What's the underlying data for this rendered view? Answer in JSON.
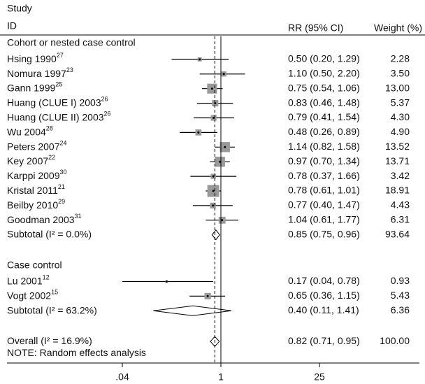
{
  "chart_data": {
    "type": "forest",
    "headers": {
      "study": "Study",
      "id": "ID",
      "rr": "RR (95% CI)",
      "weight": "Weight (%)"
    },
    "groups": [
      {
        "name": "Cohort or nested case control",
        "studies": [
          {
            "study": "Hsing 1990",
            "ref": "27",
            "rr": 0.5,
            "lo": 0.2,
            "hi": 1.29,
            "rr_label": "0.50 (0.20, 1.29)",
            "weight": 2.28,
            "weight_label": "2.28"
          },
          {
            "study": "Nomura 1997",
            "ref": "23",
            "rr": 1.1,
            "lo": 0.5,
            "hi": 2.2,
            "rr_label": "1.10 (0.50, 2.20)",
            "weight": 3.5,
            "weight_label": "3.50"
          },
          {
            "study": "Gann 1999",
            "ref": "25",
            "rr": 0.75,
            "lo": 0.54,
            "hi": 1.06,
            "rr_label": "0.75 (0.54, 1.06)",
            "weight": 13.0,
            "weight_label": "13.00"
          },
          {
            "study": "Huang (CLUE I) 2003",
            "ref": "26",
            "rr": 0.83,
            "lo": 0.46,
            "hi": 1.48,
            "rr_label": "0.83 (0.46, 1.48)",
            "weight": 5.37,
            "weight_label": "5.37"
          },
          {
            "study": "Huang (CLUE II) 2003",
            "ref": "26",
            "rr": 0.79,
            "lo": 0.41,
            "hi": 1.54,
            "rr_label": "0.79 (0.41, 1.54)",
            "weight": 4.3,
            "weight_label": "4.30"
          },
          {
            "study": "Wu 2004",
            "ref": "28",
            "rr": 0.48,
            "lo": 0.26,
            "hi": 0.89,
            "rr_label": "0.48 (0.26, 0.89)",
            "weight": 4.9,
            "weight_label": "4.90"
          },
          {
            "study": "Peters 2007",
            "ref": "24",
            "rr": 1.14,
            "lo": 0.82,
            "hi": 1.58,
            "rr_label": "1.14 (0.82, 1.58)",
            "weight": 13.52,
            "weight_label": "13.52"
          },
          {
            "study": "Key 2007",
            "ref": "22",
            "rr": 0.97,
            "lo": 0.7,
            "hi": 1.34,
            "rr_label": "0.97 (0.70, 1.34)",
            "weight": 13.71,
            "weight_label": "13.71"
          },
          {
            "study": "Karppi 2009",
            "ref": "30",
            "rr": 0.78,
            "lo": 0.37,
            "hi": 1.66,
            "rr_label": "0.78 (0.37, 1.66)",
            "weight": 3.42,
            "weight_label": "3.42"
          },
          {
            "study": "Kristal 2011",
            "ref": "21",
            "rr": 0.78,
            "lo": 0.61,
            "hi": 1.01,
            "rr_label": "0.78 (0.61, 1.01)",
            "weight": 18.91,
            "weight_label": "18.91"
          },
          {
            "study": "Beilby 2010",
            "ref": "29",
            "rr": 0.77,
            "lo": 0.4,
            "hi": 1.47,
            "rr_label": "0.77 (0.40, 1.47)",
            "weight": 4.43,
            "weight_label": "4.43"
          },
          {
            "study": "Goodman 2003",
            "ref": "31",
            "rr": 1.04,
            "lo": 0.61,
            "hi": 1.77,
            "rr_label": "1.04 (0.61, 1.77)",
            "weight": 6.31,
            "weight_label": "6.31"
          }
        ],
        "subtotal": {
          "study": "Subtotal (I² = 0.0%)",
          "rr": 0.85,
          "lo": 0.75,
          "hi": 0.96,
          "rr_label": "0.85 (0.75, 0.96)",
          "weight": 93.64,
          "weight_label": "93.64"
        }
      },
      {
        "name": "Case control",
        "studies": [
          {
            "study": "Lu 2001",
            "ref": "12",
            "rr": 0.17,
            "lo": 0.04,
            "hi": 0.78,
            "rr_label": "0.17 (0.04, 0.78)",
            "weight": 0.93,
            "weight_label": "0.93"
          },
          {
            "study": "Vogt 2002",
            "ref": "15",
            "rr": 0.65,
            "lo": 0.36,
            "hi": 1.15,
            "rr_label": "0.65 (0.36, 1.15)",
            "weight": 5.43,
            "weight_label": "5.43"
          }
        ],
        "subtotal": {
          "study": "Subtotal (I² = 63.2%)",
          "rr": 0.4,
          "lo": 0.11,
          "hi": 1.41,
          "rr_label": "0.40 (0.11, 1.41)",
          "weight": 6.36,
          "weight_label": "6.36"
        }
      }
    ],
    "overall": {
      "study": "Overall (I² = 16.9%)",
      "rr": 0.82,
      "lo": 0.71,
      "hi": 0.95,
      "rr_label": "0.82 (0.71, 0.95)",
      "weight": 100.0,
      "weight_label": "100.00"
    },
    "note": "NOTE: Random effects analysis",
    "log_scale": true,
    "xlim": [
      0.04,
      25
    ],
    "xticks": [
      {
        "value": 0.04,
        "label": ".04"
      },
      1,
      25
    ],
    "box_color": "#999999"
  }
}
